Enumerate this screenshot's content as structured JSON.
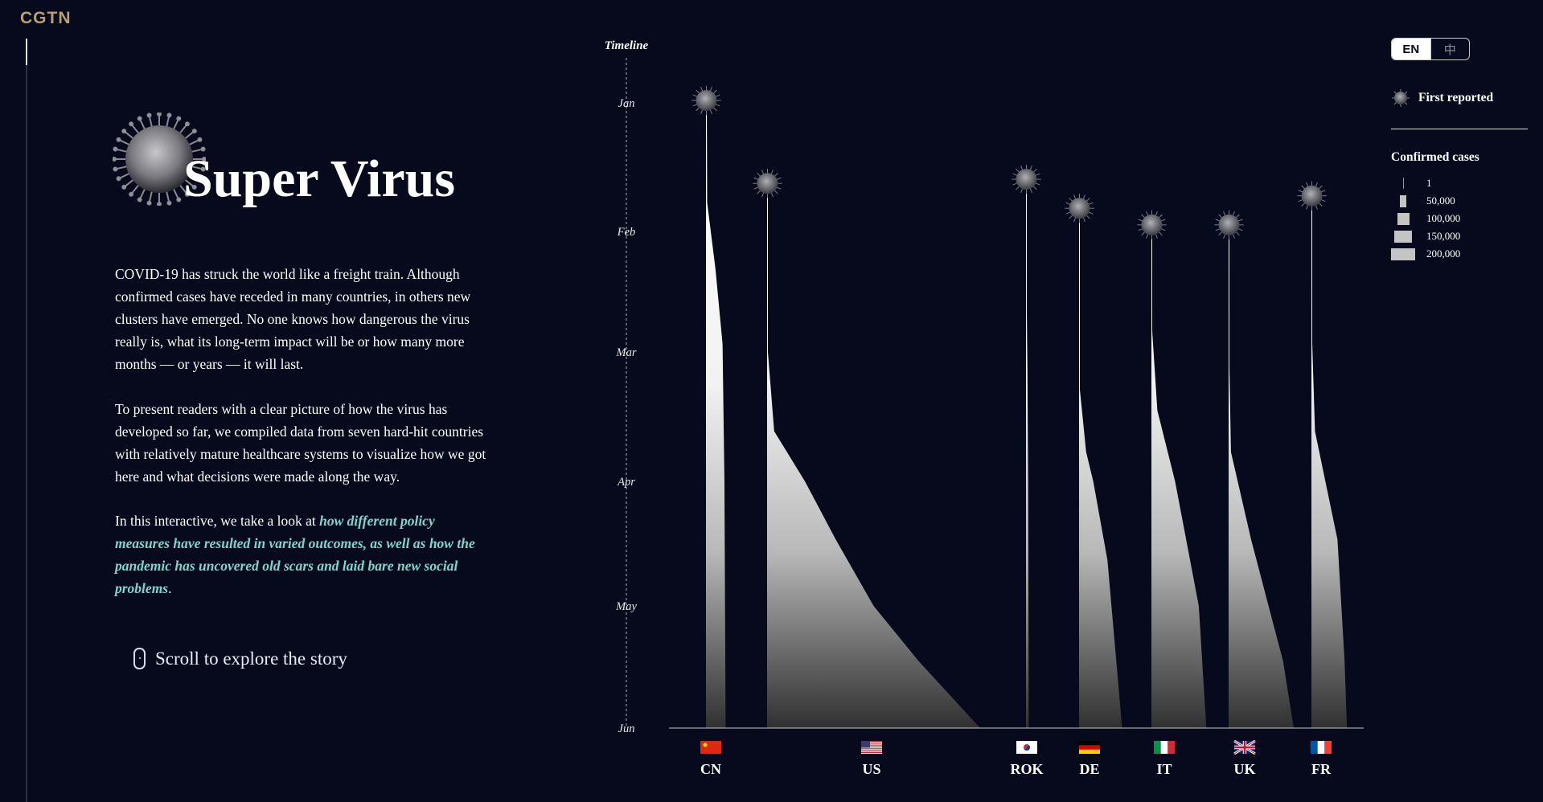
{
  "brand": {
    "logo": "CGTN"
  },
  "intro": {
    "title": "Super Virus",
    "paragraph1": "COVID-19 has struck the world like a freight train. Although confirmed cases have receded in many countries, in others new clusters have emerged. No one knows how dangerous the virus really is, what its long-term impact will be or how many more months — or years — it will last.",
    "paragraph2": "To present readers with a clear picture of how the virus has developed so far, we compiled data from seven hard-hit countries with relatively mature healthcare systems to visualize how we got here and what decisions were made along the way.",
    "paragraph3_start": "In this interactive, we take a look at ",
    "paragraph3_highlight": "how different policy measures have resulted in varied outcomes, as well as how the pandemic has uncovered old scars and laid bare new social problems",
    "paragraph3_end": ".",
    "scroll_label": "Scroll to explore the story",
    "highlight_color": "#7cd6d0"
  },
  "language": {
    "options": [
      "EN",
      "中"
    ],
    "selected": "EN"
  },
  "legend": {
    "first_reported": "First reported",
    "confirmed_cases_title": "Confirmed cases",
    "scale": [
      "1",
      "50,000",
      "100,000",
      "150,000",
      "200,000"
    ],
    "scale_values": [
      1,
      50000,
      100000,
      150000,
      200000
    ]
  },
  "chart_data": {
    "type": "area",
    "title": "",
    "timeline_label": "Timeline",
    "months": [
      "Jan",
      "Feb",
      "Mar",
      "Apr",
      "May",
      "Jun"
    ],
    "y_unit": "date",
    "width_metric": "Confirmed cases",
    "series": [
      {
        "code": "CN",
        "flag": "cn-flag",
        "first_reported": "2020-01-01",
        "cases_profile": [
          [
            "2020-01-01",
            0
          ],
          [
            "2020-01-25",
            5000
          ],
          [
            "2020-02-10",
            40000
          ],
          [
            "2020-02-28",
            70000
          ],
          [
            "2020-04-01",
            78000
          ],
          [
            "2020-06-01",
            83000
          ]
        ]
      },
      {
        "code": "US",
        "flag": "us-flag",
        "first_reported": "2020-01-21",
        "cases_profile": [
          [
            "2020-01-21",
            0
          ],
          [
            "2020-03-01",
            1000
          ],
          [
            "2020-03-20",
            30000
          ],
          [
            "2020-04-01",
            160000
          ],
          [
            "2020-04-15",
            290000
          ],
          [
            "2020-05-01",
            450000
          ],
          [
            "2020-05-15",
            640000
          ],
          [
            "2020-06-01",
            900000
          ]
        ]
      },
      {
        "code": "ROK",
        "flag": "kr-flag",
        "first_reported": "2020-01-20",
        "cases_profile": [
          [
            "2020-01-20",
            0
          ],
          [
            "2020-02-20",
            500
          ],
          [
            "2020-03-05",
            6000
          ],
          [
            "2020-04-01",
            9000
          ],
          [
            "2020-06-01",
            11500
          ]
        ]
      },
      {
        "code": "DE",
        "flag": "de-flag",
        "first_reported": "2020-01-27",
        "cases_profile": [
          [
            "2020-01-27",
            0
          ],
          [
            "2020-03-10",
            1500
          ],
          [
            "2020-03-25",
            30000
          ],
          [
            "2020-04-01",
            60000
          ],
          [
            "2020-04-20",
            120000
          ],
          [
            "2020-06-01",
            182000
          ]
        ]
      },
      {
        "code": "IT",
        "flag": "it-flag",
        "first_reported": "2020-01-31",
        "cases_profile": [
          [
            "2020-01-31",
            0
          ],
          [
            "2020-02-25",
            300
          ],
          [
            "2020-03-15",
            25000
          ],
          [
            "2020-04-01",
            100000
          ],
          [
            "2020-05-01",
            200000
          ],
          [
            "2020-06-01",
            232000
          ]
        ]
      },
      {
        "code": "UK",
        "flag": "uk-flag",
        "first_reported": "2020-01-31",
        "cases_profile": [
          [
            "2020-01-31",
            0
          ],
          [
            "2020-03-05",
            100
          ],
          [
            "2020-03-25",
            10000
          ],
          [
            "2020-04-15",
            95000
          ],
          [
            "2020-05-15",
            230000
          ],
          [
            "2020-06-01",
            275000
          ]
        ]
      },
      {
        "code": "FR",
        "flag": "fr-flag",
        "first_reported": "2020-01-24",
        "cases_profile": [
          [
            "2020-01-24",
            0
          ],
          [
            "2020-02-28",
            100
          ],
          [
            "2020-03-20",
            15000
          ],
          [
            "2020-04-15",
            110000
          ],
          [
            "2020-05-15",
            140000
          ],
          [
            "2020-06-01",
            150000
          ]
        ]
      }
    ]
  }
}
